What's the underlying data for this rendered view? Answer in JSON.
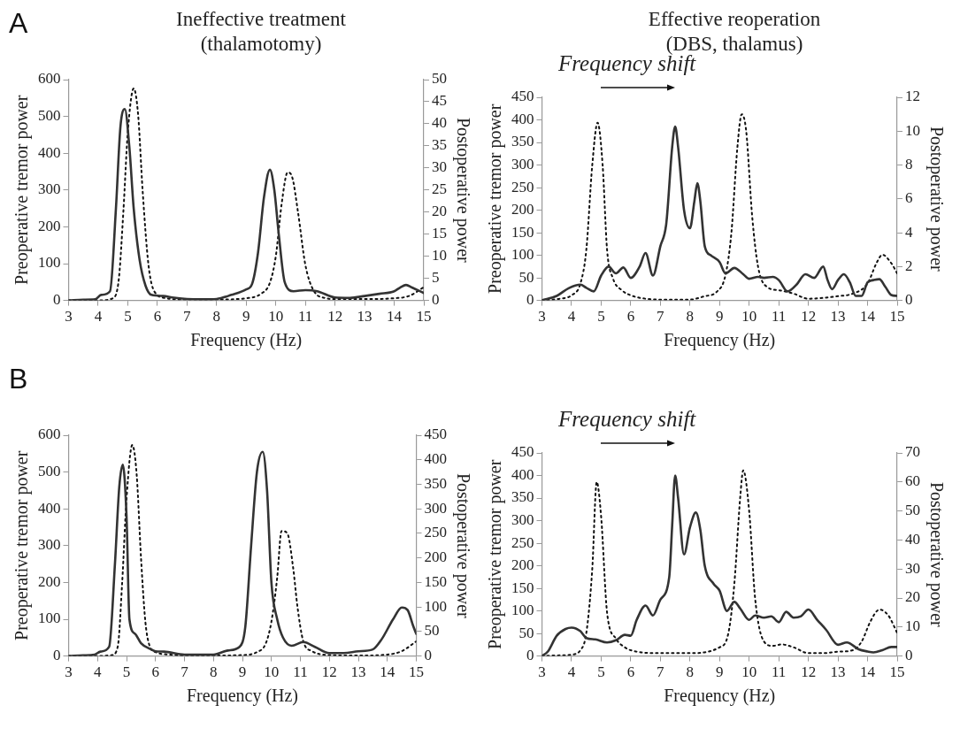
{
  "chart_data": [
    {
      "type": "line",
      "title": "Ineffective treatment\n(thalamotomy)",
      "annotations": [
        "A"
      ],
      "xlabel": "Frequency (Hz)",
      "ylabel": "Preoperative tremor power",
      "y2label": "Postoperative power",
      "xlim": [
        3,
        15
      ],
      "xticks": [
        3,
        4,
        5,
        6,
        7,
        8,
        9,
        10,
        11,
        12,
        13,
        14,
        15
      ],
      "ylim": [
        0,
        600
      ],
      "yticks": [
        0,
        100,
        200,
        300,
        400,
        500,
        600
      ],
      "y2lim": [
        0,
        50
      ],
      "y2ticks": [
        0,
        5,
        10,
        15,
        20,
        25,
        30,
        35,
        40,
        45,
        50
      ],
      "marker": "none",
      "series": [
        {
          "color": "#333333",
          "line_style": "solid",
          "x": [
            3,
            3.5,
            3.9,
            4.1,
            4.4,
            4.6,
            4.75,
            4.9,
            5.05,
            5.2,
            5.4,
            5.6,
            5.8,
            6.2,
            6.5,
            7,
            7.5,
            8,
            8.5,
            9,
            9.2,
            9.4,
            9.6,
            9.8,
            9.95,
            10.1,
            10.3,
            10.6,
            11,
            11.4,
            12,
            12.5,
            13,
            13.5,
            14,
            14.2,
            14.4,
            14.6,
            15
          ],
          "values": [
            0,
            2,
            3,
            15,
            25,
            250,
            470,
            520,
            420,
            250,
            110,
            40,
            15,
            12,
            8,
            4,
            3,
            4,
            15,
            30,
            45,
            130,
            280,
            355,
            300,
            180,
            50,
            25,
            28,
            25,
            8,
            7,
            12,
            18,
            25,
            35,
            42,
            35,
            20
          ]
        },
        {
          "color": "#111111",
          "line_style": "dotted",
          "axis": "y2",
          "x": [
            3,
            4,
            4.5,
            4.7,
            4.85,
            5,
            5.2,
            5.35,
            5.5,
            5.7,
            5.9,
            6.3,
            7,
            8,
            9,
            9.5,
            9.8,
            10,
            10.2,
            10.4,
            10.55,
            10.75,
            11,
            11.3,
            11.7,
            12,
            13,
            14,
            14.5,
            15
          ],
          "values": [
            0,
            0,
            0.5,
            5,
            20,
            38,
            48,
            42,
            25,
            8,
            2,
            0.5,
            0.2,
            0.2,
            0.5,
            1.5,
            4,
            10,
            22,
            29,
            28,
            20,
            8,
            2,
            0.5,
            0.3,
            0.3,
            0.5,
            1,
            3
          ]
        }
      ]
    },
    {
      "type": "line",
      "title": "Effective reoperation\n(DBS, thalamus)",
      "annotations": [
        "Frequency shift"
      ],
      "xlabel": "Frequency (Hz)",
      "ylabel": "Preoperative tremor power",
      "y2label": "Postoperative power",
      "xlim": [
        3,
        15
      ],
      "xticks": [
        3,
        4,
        5,
        6,
        7,
        8,
        9,
        10,
        11,
        12,
        13,
        14,
        15
      ],
      "ylim": [
        0,
        450
      ],
      "yticks": [
        0,
        50,
        100,
        150,
        200,
        250,
        300,
        350,
        400,
        450
      ],
      "y2lim": [
        0,
        12
      ],
      "y2ticks": [
        0,
        2,
        4,
        6,
        8,
        10,
        12
      ],
      "marker": "none",
      "series": [
        {
          "color": "#333333",
          "line_style": "solid",
          "x": [
            3,
            3.5,
            3.9,
            4.3,
            4.5,
            4.75,
            5,
            5.25,
            5.5,
            5.75,
            6,
            6.3,
            6.5,
            6.75,
            7,
            7.2,
            7.4,
            7.5,
            7.6,
            7.8,
            8,
            8.15,
            8.25,
            8.35,
            8.5,
            8.7,
            9,
            9.2,
            9.5,
            9.8,
            10,
            10.3,
            10.5,
            10.8,
            11,
            11.3,
            11.6,
            11.9,
            12.2,
            12.5,
            12.65,
            12.8,
            13,
            13.2,
            13.4,
            13.6,
            13.8,
            14,
            14.2,
            14.4,
            14.6,
            14.8,
            15
          ],
          "values": [
            0,
            10,
            27,
            35,
            28,
            20,
            55,
            75,
            60,
            73,
            50,
            75,
            105,
            55,
            120,
            170,
            340,
            385,
            340,
            200,
            160,
            220,
            260,
            220,
            120,
            100,
            85,
            60,
            72,
            58,
            48,
            52,
            50,
            52,
            45,
            20,
            35,
            58,
            50,
            75,
            45,
            25,
            45,
            58,
            40,
            10,
            10,
            40,
            45,
            47,
            30,
            12,
            10
          ]
        },
        {
          "color": "#111111",
          "line_style": "dotted",
          "axis": "y2",
          "x": [
            3,
            3.6,
            4,
            4.3,
            4.5,
            4.7,
            4.88,
            5.05,
            5.2,
            5.4,
            5.7,
            6,
            6.5,
            7,
            8,
            8.5,
            8.9,
            9.2,
            9.4,
            9.6,
            9.75,
            9.9,
            10.1,
            10.3,
            10.6,
            11,
            11.5,
            12,
            12.5,
            13,
            13.5,
            14,
            14.3,
            14.5,
            14.8,
            15
          ],
          "values": [
            0,
            0.1,
            0.3,
            1,
            3,
            8,
            10.5,
            8,
            3,
            1.3,
            0.6,
            0.3,
            0.1,
            0.05,
            0.05,
            0.25,
            0.5,
            1.5,
            4,
            9,
            11,
            10,
            5,
            2,
            0.8,
            0.6,
            0.4,
            0.1,
            0.15,
            0.25,
            0.4,
            1,
            2.2,
            2.7,
            2.2,
            1.6
          ]
        }
      ]
    },
    {
      "type": "line",
      "annotations": [
        "B"
      ],
      "xlabel": "Frequency (Hz)",
      "ylabel": "Preoperative tremor power",
      "y2label": "Postoperative power",
      "xlim": [
        3,
        15
      ],
      "xticks": [
        3,
        4,
        5,
        6,
        7,
        8,
        9,
        10,
        11,
        12,
        13,
        14,
        15
      ],
      "ylim": [
        0,
        600
      ],
      "yticks": [
        0,
        100,
        200,
        300,
        400,
        500,
        600
      ],
      "y2lim": [
        0,
        450
      ],
      "y2ticks": [
        0,
        50,
        100,
        150,
        200,
        250,
        300,
        350,
        400,
        450
      ],
      "marker": "none",
      "series": [
        {
          "color": "#333333",
          "line_style": "solid",
          "x": [
            3,
            3.5,
            3.9,
            4.1,
            4.4,
            4.6,
            4.75,
            4.87,
            5,
            5.1,
            5.3,
            5.5,
            5.8,
            6,
            6.3,
            7,
            7.5,
            8,
            8.5,
            8.9,
            9.1,
            9.3,
            9.5,
            9.7,
            9.85,
            10,
            10.2,
            10.4,
            10.7,
            11.1,
            11.5,
            12,
            12.5,
            13,
            13.5,
            13.8,
            14.2,
            14.5,
            14.7,
            14.9,
            15
          ],
          "values": [
            0,
            2,
            4,
            12,
            25,
            250,
            460,
            520,
            380,
            100,
            60,
            35,
            20,
            13,
            12,
            4,
            4,
            4,
            15,
            25,
            80,
            300,
            500,
            555,
            450,
            200,
            100,
            50,
            28,
            38,
            25,
            8,
            8,
            13,
            18,
            45,
            100,
            132,
            125,
            80,
            60
          ]
        },
        {
          "color": "#111111",
          "line_style": "dotted",
          "axis": "y2",
          "x": [
            3,
            4,
            4.5,
            4.7,
            4.85,
            5,
            5.2,
            5.35,
            5.5,
            5.65,
            5.8,
            6,
            6.5,
            7,
            8,
            9,
            9.5,
            9.8,
            10,
            10.2,
            10.35,
            10.55,
            10.75,
            10.9,
            11.1,
            11.4,
            12,
            13,
            14,
            14.5,
            15
          ],
          "values": [
            0,
            0,
            2,
            20,
            150,
            320,
            430,
            370,
            200,
            70,
            20,
            8,
            3,
            1,
            1,
            2,
            8,
            25,
            70,
            160,
            255,
            250,
            180,
            100,
            30,
            10,
            2,
            1,
            3,
            10,
            30
          ]
        }
      ]
    },
    {
      "type": "line",
      "annotations": [
        "Frequency shift"
      ],
      "xlabel": "Frequency (Hz)",
      "ylabel": "Preoperative tremor power",
      "y2label": "Postoperative power",
      "xlim": [
        3,
        15
      ],
      "xticks": [
        3,
        4,
        5,
        6,
        7,
        8,
        9,
        10,
        11,
        12,
        13,
        14,
        15
      ],
      "ylim": [
        0,
        450
      ],
      "yticks": [
        0,
        50,
        100,
        150,
        200,
        250,
        300,
        350,
        400,
        450
      ],
      "y2lim": [
        0,
        70
      ],
      "y2ticks": [
        0,
        10,
        20,
        30,
        40,
        50,
        60,
        70
      ],
      "marker": "none",
      "series": [
        {
          "color": "#333333",
          "line_style": "solid",
          "x": [
            3,
            3.2,
            3.5,
            3.8,
            4,
            4.3,
            4.5,
            4.8,
            5.2,
            5.5,
            5.8,
            6,
            6.2,
            6.5,
            6.75,
            7,
            7.3,
            7.4,
            7.5,
            7.6,
            7.8,
            8,
            8.2,
            8.35,
            8.5,
            8.8,
            9,
            9.25,
            9.5,
            9.7,
            10,
            10.2,
            10.5,
            10.75,
            11,
            11.25,
            11.5,
            11.75,
            12,
            12.3,
            12.6,
            13,
            13.3,
            13.7,
            14,
            14.2,
            14.5,
            14.8,
            15
          ],
          "values": [
            0,
            10,
            45,
            60,
            63,
            55,
            40,
            37,
            30,
            35,
            47,
            45,
            80,
            112,
            90,
            125,
            175,
            290,
            400,
            350,
            225,
            285,
            318,
            280,
            200,
            160,
            145,
            100,
            120,
            105,
            80,
            90,
            85,
            88,
            75,
            98,
            85,
            88,
            103,
            80,
            58,
            25,
            30,
            15,
            10,
            8,
            13,
            20,
            20
          ]
        },
        {
          "color": "#111111",
          "line_style": "dotted",
          "axis": "y2",
          "x": [
            3,
            3.5,
            4,
            4.3,
            4.5,
            4.7,
            4.85,
            5,
            5.2,
            5.5,
            5.8,
            6,
            7,
            8,
            9,
            9.3,
            9.5,
            9.7,
            9.8,
            10,
            10.2,
            10.5,
            10.8,
            11.1,
            11.5,
            12,
            12.5,
            13,
            13.5,
            13.8,
            14.1,
            14.4,
            14.7,
            15
          ],
          "values": [
            0,
            0.2,
            0.5,
            2,
            8,
            30,
            60,
            48,
            15,
            6,
            3,
            2,
            1,
            1,
            3,
            8,
            25,
            55,
            64,
            50,
            20,
            5,
            3.5,
            4,
            3,
            1,
            1,
            1.5,
            2,
            5,
            12,
            16,
            14,
            8
          ]
        }
      ]
    }
  ]
}
